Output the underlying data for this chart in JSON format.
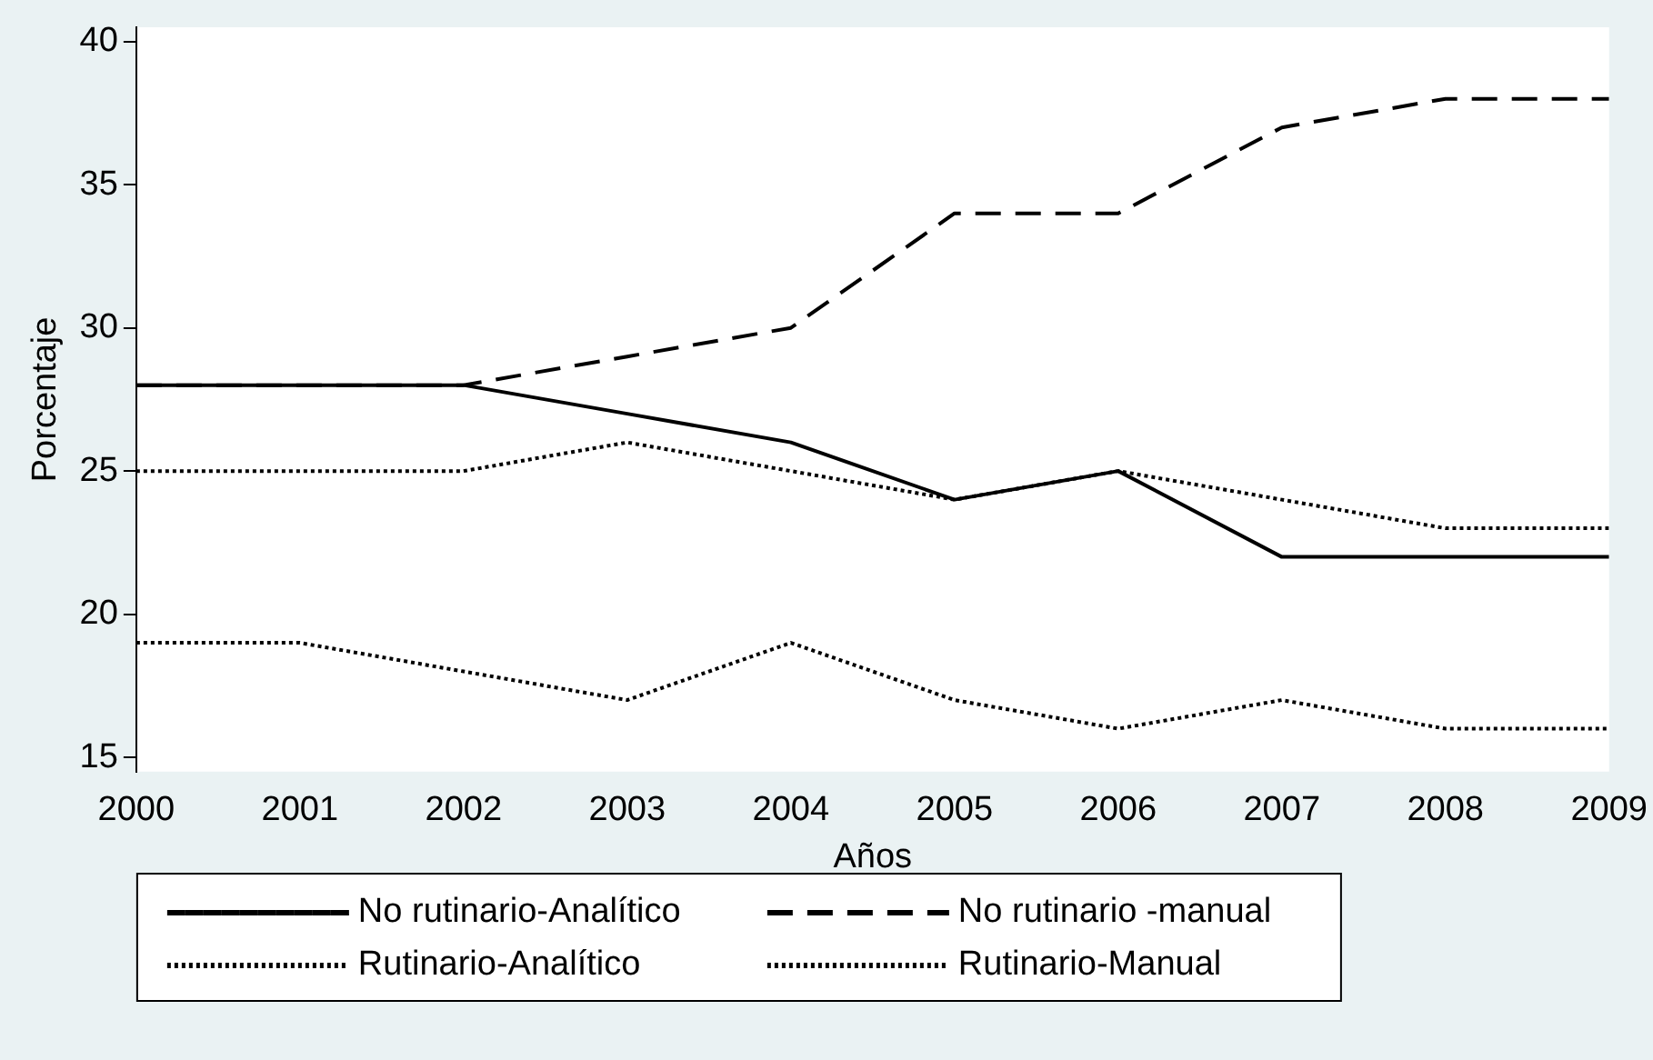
{
  "chart_data": {
    "type": "line",
    "xlabel": "Años",
    "ylabel": "Porcentaje",
    "x": [
      2000,
      2001,
      2002,
      2003,
      2004,
      2005,
      2006,
      2007,
      2008,
      2009
    ],
    "xlim": [
      2000,
      2009
    ],
    "xticks": [
      2000,
      2001,
      2002,
      2003,
      2004,
      2005,
      2006,
      2007,
      2008,
      2009
    ],
    "ylim": [
      14.5,
      40.5
    ],
    "yticks": [
      15,
      20,
      25,
      30,
      35,
      40
    ],
    "grid": false,
    "legend": "bottom",
    "marker": "none",
    "series": [
      {
        "name": "No rutinario-Analítico",
        "color": "#000000",
        "line_style": "solid",
        "values": [
          28,
          28,
          28,
          27,
          26,
          24,
          25,
          22,
          22,
          22
        ]
      },
      {
        "name": "No rutinario -manual",
        "color": "#000000",
        "line_style": "dashed",
        "values": [
          28,
          28,
          28,
          29,
          30,
          34,
          34,
          37,
          38,
          38
        ]
      },
      {
        "name": "Rutinario-Analítico",
        "color": "#000000",
        "line_style": "dotted",
        "values": [
          25,
          25,
          25,
          26,
          25,
          24,
          25,
          24,
          23,
          23
        ]
      },
      {
        "name": "Rutinario-Manual",
        "color": "#000000",
        "line_style": "dotted",
        "values": [
          19,
          19,
          18,
          17,
          19,
          17,
          16,
          17,
          16,
          16
        ]
      }
    ]
  }
}
